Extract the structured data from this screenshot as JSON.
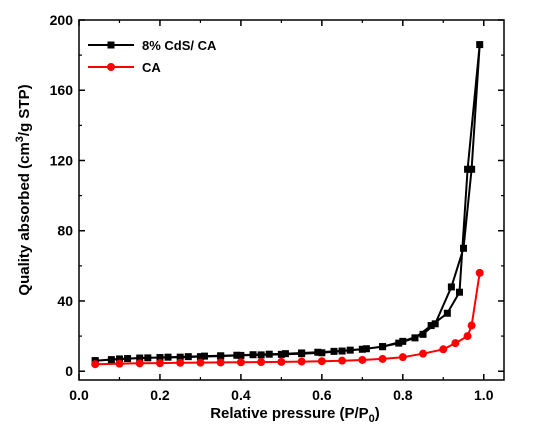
{
  "chart_data": {
    "type": "line",
    "title": "",
    "xlabel_main": "Relative pressure (P/P",
    "xlabel_sub": "0",
    "xlabel_end": ")",
    "ylabel_main": "Quality absorbed (cm",
    "ylabel_sup": "3",
    "ylabel_end": "/g STP)",
    "xlim": [
      0.0,
      1.05
    ],
    "ylim": [
      -5,
      200
    ],
    "xticks": [
      "0.0",
      "0.2",
      "0.4",
      "0.6",
      "0.8",
      "1.0"
    ],
    "yticks": [
      "0",
      "40",
      "80",
      "120",
      "160",
      "200"
    ],
    "grid": false,
    "legend_position": "top-left",
    "series": [
      {
        "name": "8% CdS/ CA",
        "color": "#000000",
        "marker": "square",
        "x": [
          0.04,
          0.1,
          0.15,
          0.2,
          0.25,
          0.3,
          0.35,
          0.4,
          0.45,
          0.5,
          0.55,
          0.6,
          0.65,
          0.7,
          0.75,
          0.8,
          0.85,
          0.88,
          0.92,
          0.95,
          0.97,
          0.99,
          0.96,
          0.94,
          0.91,
          0.87,
          0.83,
          0.79,
          0.75,
          0.71,
          0.67,
          0.63,
          0.59,
          0.55,
          0.51,
          0.47,
          0.43,
          0.39,
          0.35,
          0.31,
          0.27,
          0.22,
          0.17,
          0.12,
          0.08,
          0.04
        ],
        "y": [
          6,
          7,
          7.5,
          7.8,
          8,
          8.3,
          8.6,
          9,
          9.3,
          9.6,
          10,
          10.5,
          11.5,
          12.5,
          14,
          17,
          21,
          27,
          48,
          70,
          115,
          186,
          115,
          45,
          33,
          26,
          19,
          16,
          14,
          12.8,
          12,
          11.3,
          10.8,
          10.4,
          10,
          9.7,
          9.4,
          9.1,
          8.8,
          8.6,
          8.3,
          8,
          7.6,
          7.2,
          6.6,
          6
        ]
      },
      {
        "name": "CA",
        "color": "#ff0000",
        "marker": "circle",
        "x": [
          0.04,
          0.1,
          0.15,
          0.2,
          0.25,
          0.3,
          0.35,
          0.4,
          0.45,
          0.5,
          0.55,
          0.6,
          0.65,
          0.7,
          0.75,
          0.8,
          0.85,
          0.9,
          0.93,
          0.96,
          0.97,
          0.99
        ],
        "y": [
          4,
          4.3,
          4.5,
          4.6,
          4.8,
          4.9,
          5,
          5.1,
          5.2,
          5.3,
          5.5,
          5.7,
          6,
          6.4,
          7,
          8,
          10,
          12.5,
          16,
          20,
          26,
          56
        ]
      }
    ]
  }
}
